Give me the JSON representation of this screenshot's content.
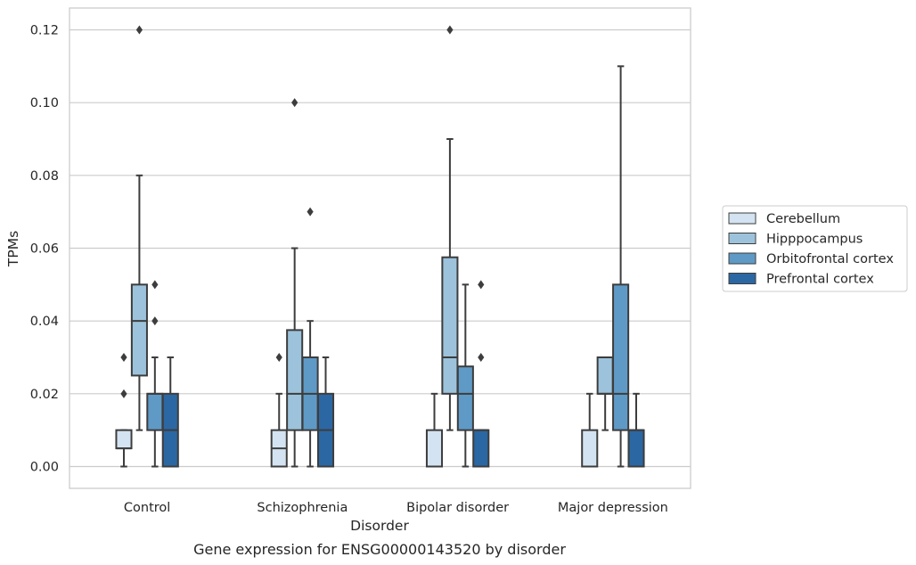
{
  "chart_data": {
    "type": "box",
    "xlabel": "Disorder",
    "ylabel": "TPMs",
    "caption": "Gene expression for ENSG00000143520 by disorder",
    "ylim": [
      -0.006,
      0.126
    ],
    "yticks": [
      0.0,
      0.02,
      0.04,
      0.06,
      0.08,
      0.1,
      0.12
    ],
    "ytick_labels": [
      "0.00",
      "0.02",
      "0.04",
      "0.06",
      "0.08",
      "0.10",
      "0.12"
    ],
    "grid": "horizontal",
    "legend_position": "right",
    "categories": [
      "Control",
      "Schizophrenia",
      "Bipolar disorder",
      "Major depression"
    ],
    "series": [
      {
        "name": "Cerebellum",
        "color": "#d4e3f1",
        "boxes": [
          {
            "whisker_low": 0.0,
            "q1": 0.005,
            "median": 0.005,
            "q3": 0.01,
            "whisker_high": 0.01,
            "outliers": [
              0.02,
              0.03
            ]
          },
          {
            "whisker_low": 0.0,
            "q1": 0.0,
            "median": 0.005,
            "q3": 0.01,
            "whisker_high": 0.02,
            "outliers": [
              0.03
            ]
          },
          {
            "whisker_low": 0.0,
            "q1": 0.0,
            "median": 0.0,
            "q3": 0.01,
            "whisker_high": 0.02,
            "outliers": []
          },
          {
            "whisker_low": 0.0,
            "q1": 0.0,
            "median": 0.0,
            "q3": 0.01,
            "whisker_high": 0.02,
            "outliers": []
          }
        ]
      },
      {
        "name": "Hipppocampus",
        "color": "#9dc3dc",
        "boxes": [
          {
            "whisker_low": 0.01,
            "q1": 0.025,
            "median": 0.04,
            "q3": 0.05,
            "whisker_high": 0.08,
            "outliers": [
              0.12
            ]
          },
          {
            "whisker_low": 0.0,
            "q1": 0.01,
            "median": 0.02,
            "q3": 0.0375,
            "whisker_high": 0.06,
            "outliers": [
              0.1
            ]
          },
          {
            "whisker_low": 0.01,
            "q1": 0.02,
            "median": 0.03,
            "q3": 0.0575,
            "whisker_high": 0.09,
            "outliers": [
              0.12
            ]
          },
          {
            "whisker_low": 0.01,
            "q1": 0.02,
            "median": 0.02,
            "q3": 0.03,
            "whisker_high": 0.03,
            "outliers": []
          }
        ]
      },
      {
        "name": "Orbitofrontal cortex",
        "color": "#5f9ac6",
        "boxes": [
          {
            "whisker_low": 0.0,
            "q1": 0.01,
            "median": 0.02,
            "q3": 0.02,
            "whisker_high": 0.03,
            "outliers": [
              0.04,
              0.05
            ]
          },
          {
            "whisker_low": 0.0,
            "q1": 0.01,
            "median": 0.02,
            "q3": 0.03,
            "whisker_high": 0.04,
            "outliers": [
              0.07
            ]
          },
          {
            "whisker_low": 0.0,
            "q1": 0.01,
            "median": 0.02,
            "q3": 0.0275,
            "whisker_high": 0.05,
            "outliers": []
          },
          {
            "whisker_low": 0.0,
            "q1": 0.01,
            "median": 0.02,
            "q3": 0.05,
            "whisker_high": 0.11,
            "outliers": []
          }
        ]
      },
      {
        "name": "Prefrontal cortex",
        "color": "#2b67a3",
        "boxes": [
          {
            "whisker_low": 0.0,
            "q1": 0.0,
            "median": 0.01,
            "q3": 0.02,
            "whisker_high": 0.03,
            "outliers": []
          },
          {
            "whisker_low": 0.0,
            "q1": 0.0,
            "median": 0.01,
            "q3": 0.02,
            "whisker_high": 0.03,
            "outliers": []
          },
          {
            "whisker_low": 0.0,
            "q1": 0.0,
            "median": 0.01,
            "q3": 0.01,
            "whisker_high": 0.01,
            "outliers": [
              0.03,
              0.05
            ]
          },
          {
            "whisker_low": 0.0,
            "q1": 0.0,
            "median": 0.01,
            "q3": 0.01,
            "whisker_high": 0.02,
            "outliers": []
          }
        ]
      }
    ]
  }
}
